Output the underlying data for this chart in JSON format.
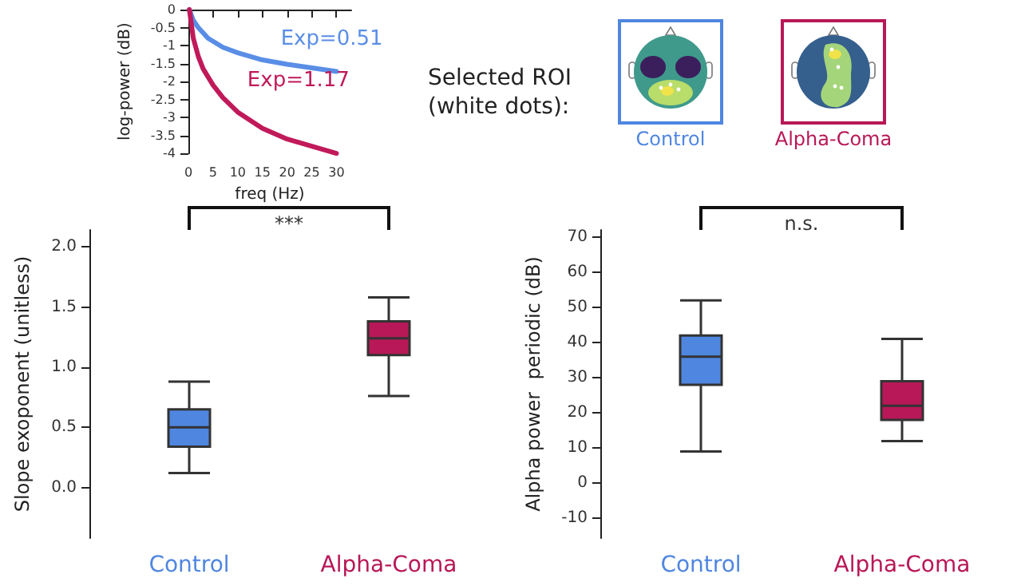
{
  "chart_data": [
    {
      "type": "line",
      "xlabel": "freq (Hz)",
      "ylabel": "log-power (dB)",
      "xlim": [
        0,
        33
      ],
      "xticks": [
        0,
        5,
        10,
        15,
        20,
        25,
        30
      ],
      "ylim": [
        -4,
        0
      ],
      "yticks": [
        0,
        -0.5,
        -1,
        -1.5,
        -2,
        -2.5,
        -3,
        -3.5,
        -4
      ],
      "grid": false,
      "legend": false,
      "marker": "none",
      "line_style": "solid",
      "series": [
        {
          "name": "Exp=0.51",
          "color": "#5a8ee6",
          "x": [
            0.2,
            1,
            2,
            4,
            7,
            10,
            15,
            20,
            25,
            30
          ],
          "values": [
            0,
            -0.3,
            -0.5,
            -0.8,
            -1.05,
            -1.2,
            -1.4,
            -1.52,
            -1.62,
            -1.72
          ]
        },
        {
          "name": "Exp=1.17",
          "color": "#c01a5a",
          "x": [
            0.2,
            1,
            2,
            3,
            5,
            7,
            10,
            15,
            20,
            25,
            30
          ],
          "values": [
            0,
            -0.8,
            -1.3,
            -1.65,
            -2.1,
            -2.45,
            -2.85,
            -3.3,
            -3.6,
            -3.8,
            -4.0
          ]
        }
      ]
    },
    {
      "type": "box",
      "ylabel": "Slope exoponent (unitless)",
      "categories": [
        "Control",
        "Alpha-Coma"
      ],
      "colors": [
        "#4f86e0",
        "#b81857"
      ],
      "ylim": [
        -0.42,
        2.14
      ],
      "yticks": [
        {
          "value": 0,
          "label": "0.0"
        },
        {
          "value": 0.5,
          "label": "0.5"
        },
        {
          "value": 1,
          "label": "1.0"
        },
        {
          "value": 1.5,
          "label": "1.5"
        },
        {
          "value": 2,
          "label": "2.0"
        }
      ],
      "grid": false,
      "legend": false,
      "annotations": [
        "***"
      ],
      "boxes": [
        {
          "low": 0.12,
          "q1": 0.34,
          "median": 0.5,
          "q3": 0.65,
          "high": 0.88
        },
        {
          "low": 0.76,
          "q1": 1.1,
          "median": 1.24,
          "q3": 1.38,
          "high": 1.58
        }
      ]
    },
    {
      "type": "box",
      "ylabel": "Alpha power  periodic (dB)",
      "categories": [
        "Control",
        "Alpha-Coma"
      ],
      "colors": [
        "#4f86e0",
        "#b81857"
      ],
      "ylim": [
        -15.6,
        72
      ],
      "yticks": [
        -10,
        0,
        10,
        20,
        30,
        40,
        50,
        60,
        70
      ],
      "grid": false,
      "legend": false,
      "annotations": [
        "n.s."
      ],
      "boxes": [
        {
          "low": 9,
          "q1": 28,
          "median": 36,
          "q3": 42,
          "high": 52
        },
        {
          "low": 12,
          "q1": 18,
          "median": 22,
          "q3": 29,
          "high": 41
        }
      ]
    },
    {
      "type": "other",
      "title": "Selected ROI (white dots):",
      "annotations": [
        "Control",
        "Alpha-Coma"
      ]
    }
  ]
}
